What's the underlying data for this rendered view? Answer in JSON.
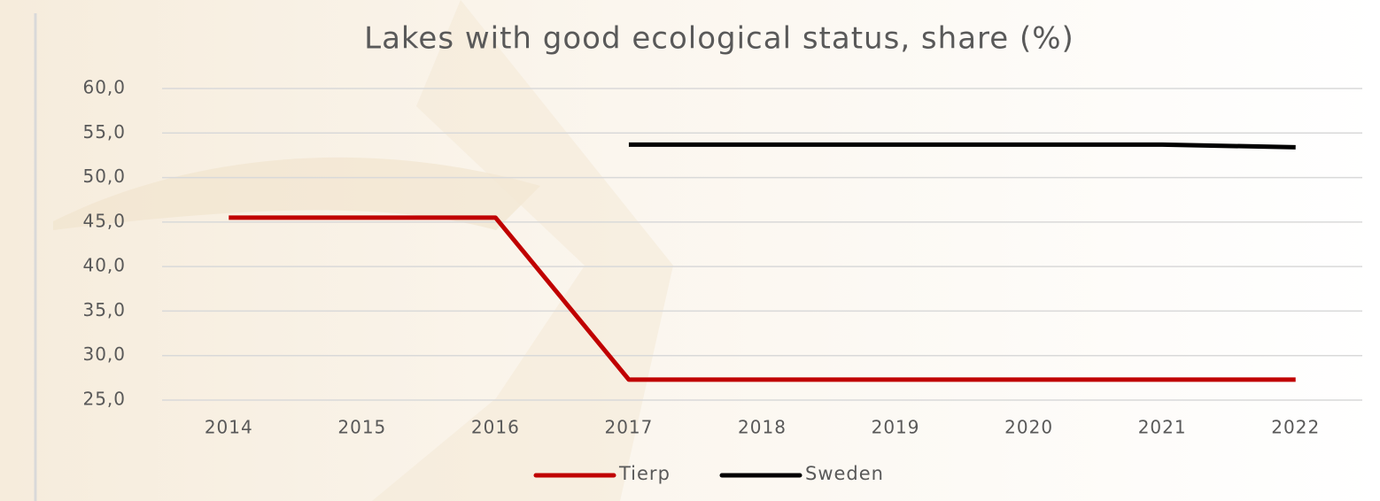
{
  "chart_data": {
    "type": "line",
    "title": "Lakes with good ecological status, share (%)",
    "categories": [
      "2014",
      "2015",
      "2016",
      "2017",
      "2018",
      "2019",
      "2020",
      "2021",
      "2022"
    ],
    "series": [
      {
        "name": "Tierp",
        "color": "#c00000",
        "values": [
          45.5,
          45.5,
          45.5,
          27.3,
          27.3,
          27.3,
          27.3,
          27.3,
          27.3
        ]
      },
      {
        "name": "Sweden",
        "color": "#000000",
        "values": [
          null,
          null,
          null,
          53.7,
          53.7,
          53.7,
          53.7,
          53.7,
          53.4
        ]
      }
    ],
    "ylim": [
      25,
      60
    ],
    "yticks": [
      {
        "value": 25,
        "label": "25,0"
      },
      {
        "value": 30,
        "label": "30,0"
      },
      {
        "value": 35,
        "label": "35,0"
      },
      {
        "value": 40,
        "label": "40,0"
      },
      {
        "value": 45,
        "label": "45,0"
      },
      {
        "value": 50,
        "label": "50,0"
      },
      {
        "value": 55,
        "label": "55,0"
      },
      {
        "value": 60,
        "label": "60,0"
      }
    ],
    "grid": true,
    "legend": "bottom"
  }
}
